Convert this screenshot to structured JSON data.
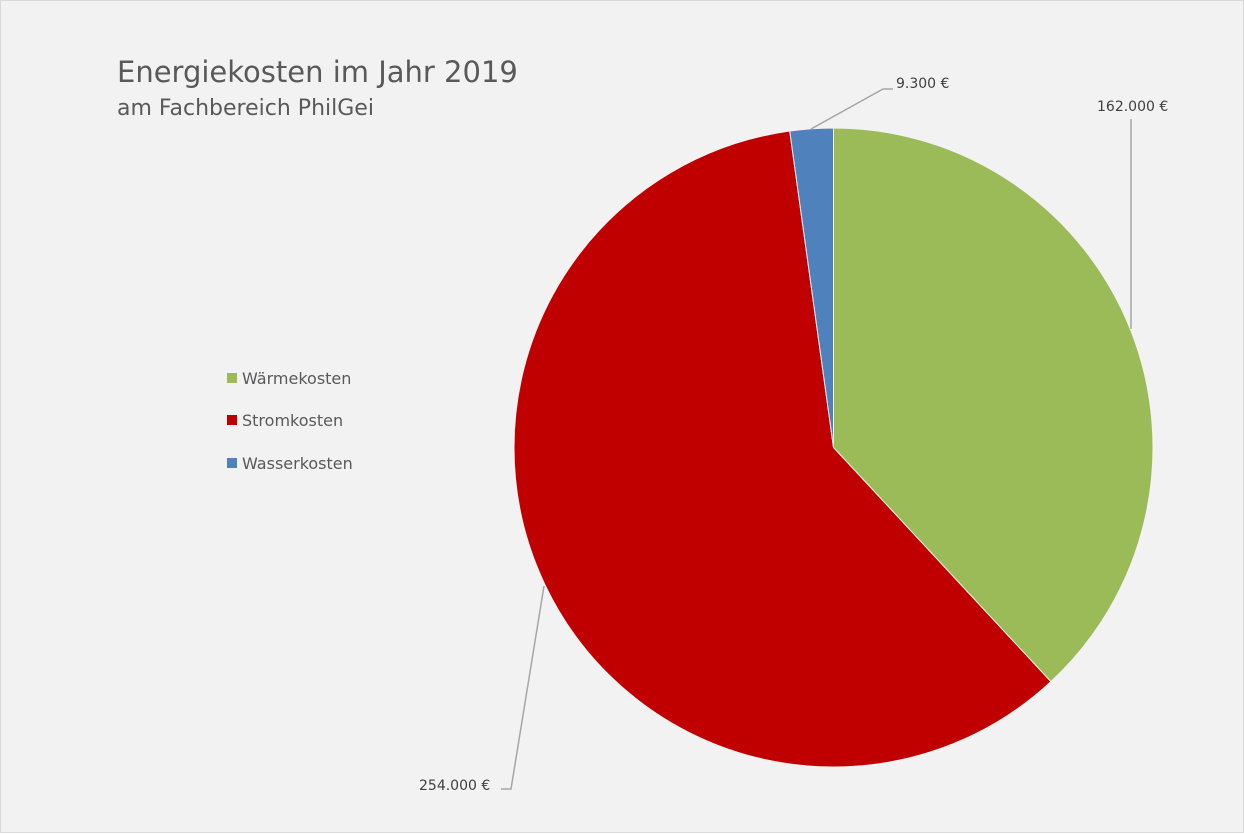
{
  "chart_data": {
    "type": "pie",
    "title": "Energiekosten im Jahr 2019",
    "subtitle": "am Fachbereich PhilGei",
    "categories": [
      "Wärmekosten",
      "Stromkosten",
      "Wasserkosten"
    ],
    "values": [
      162000,
      254000,
      9300
    ],
    "data_labels": [
      "162.000 €",
      "254.000 €",
      "9.300 €"
    ],
    "colors": [
      "#9BBB59",
      "#C00000",
      "#4F81BD"
    ],
    "legend_position": "left",
    "start_angle_deg": 0,
    "direction": "clockwise"
  }
}
